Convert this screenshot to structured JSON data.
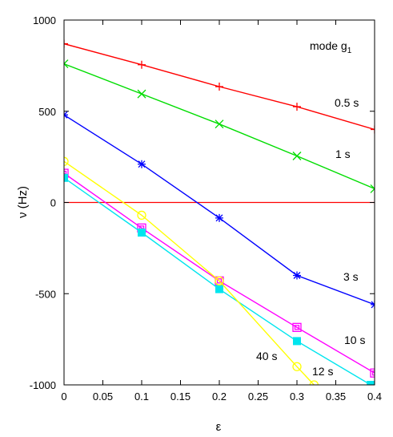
{
  "chart_data": {
    "type": "line",
    "xlabel": "ε",
    "ylabel": "ν (Hz)",
    "xlim": [
      0,
      0.4
    ],
    "ylim": [
      -1000,
      1000
    ],
    "x_ticks": [
      "0",
      "0.05",
      "0.1",
      "0.15",
      "0.2",
      "0.25",
      "0.3",
      "0.35",
      "0.4"
    ],
    "y_ticks": [
      "1000",
      "500",
      "0",
      "-500",
      "-1000"
    ],
    "grid": false,
    "legend": "none",
    "annotations": [
      "mode g",
      "1",
      "0.5 s",
      "1 s",
      "3 s",
      "10 s",
      "12 s",
      "40 s"
    ],
    "series": [
      {
        "color": "#ff0000",
        "marker": "plus",
        "x": [
          0,
          0.1,
          0.2,
          0.3,
          0.4
        ],
        "y": [
          870,
          755,
          635,
          525,
          400
        ]
      },
      {
        "color": "#00dd00",
        "marker": "x",
        "x": [
          0,
          0.1,
          0.2,
          0.3,
          0.4
        ],
        "y": [
          760,
          595,
          430,
          255,
          75
        ]
      },
      {
        "color": "#0000ff",
        "marker": "star",
        "x": [
          0,
          0.1,
          0.2,
          0.3,
          0.4
        ],
        "y": [
          480,
          210,
          -85,
          -400,
          -560
        ]
      },
      {
        "color": "#ff00ff",
        "marker": "square-open",
        "x": [
          0,
          0.1,
          0.2,
          0.3,
          0.4
        ],
        "y": [
          160,
          -140,
          -430,
          -685,
          -935
        ]
      },
      {
        "color": "#00e5ee",
        "marker": "square-filled",
        "x": [
          0,
          0.1,
          0.2,
          0.3,
          0.395
        ],
        "y": [
          135,
          -165,
          -475,
          -760,
          -1000
        ]
      },
      {
        "color": "#ffff00",
        "marker": "circle-open",
        "x": [
          0,
          0.1,
          0.2,
          0.3,
          0.322
        ],
        "y": [
          225,
          -70,
          -430,
          -900,
          -1000
        ]
      }
    ],
    "reference_lines": [
      {
        "y": 0,
        "color": "#ff0000"
      }
    ]
  }
}
